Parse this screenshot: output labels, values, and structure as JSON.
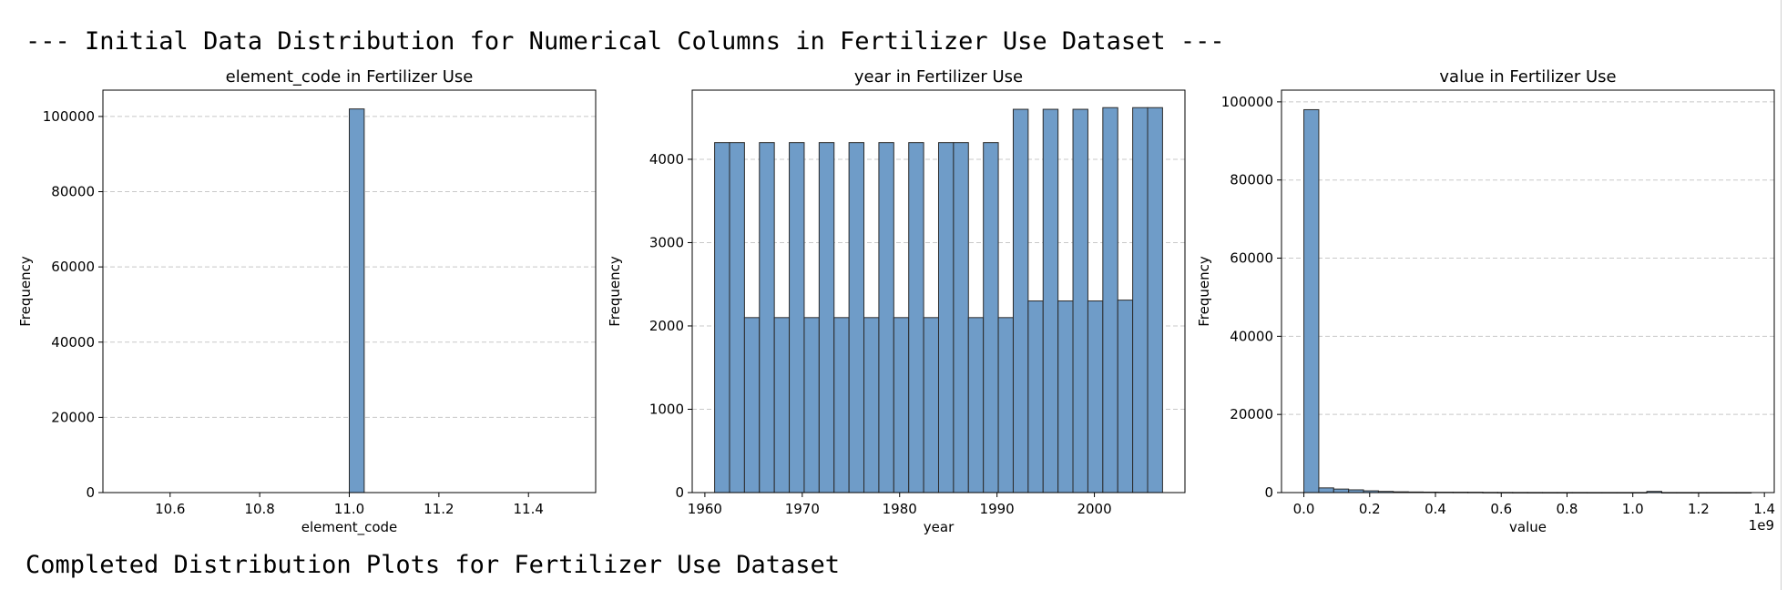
{
  "header_text": "--- Initial Data Distribution for Numerical Columns in Fertilizer Use Dataset ---",
  "footer_text": "Completed Distribution Plots for Fertilizer Use Dataset",
  "colors": {
    "bar_fill": "#6f9cc8",
    "bar_edge": "#2b2b2b",
    "grid": "#c8c8c8"
  },
  "chart_data": [
    {
      "type": "bar",
      "title": "element_code in Fertilizer Use",
      "xlabel": "element_code",
      "ylabel": "Frequency",
      "xlim": [
        10.45,
        11.55
      ],
      "ylim": [
        0,
        107000
      ],
      "xticks": [
        10.6,
        10.8,
        11.0,
        11.2,
        11.4
      ],
      "xtick_labels": [
        "10.6",
        "10.8",
        "11.0",
        "11.2",
        "11.4"
      ],
      "yticks": [
        0,
        20000,
        40000,
        60000,
        80000,
        100000
      ],
      "ytick_labels": [
        "0",
        "20000",
        "40000",
        "60000",
        "80000",
        "100000"
      ],
      "grid": "y-dashed",
      "bins": [
        {
          "x0": 11.0,
          "x1": 11.0333,
          "count": 102000
        }
      ]
    },
    {
      "type": "bar",
      "title": "year in Fertilizer Use",
      "xlabel": "year",
      "ylabel": "Frequency",
      "xlim": [
        1958.7,
        2009.3
      ],
      "ylim": [
        0,
        4830
      ],
      "xticks": [
        1960,
        1970,
        1980,
        1990,
        2000
      ],
      "xtick_labels": [
        "1960",
        "1970",
        "1980",
        "1990",
        "2000"
      ],
      "yticks": [
        0,
        1000,
        2000,
        3000,
        4000
      ],
      "ytick_labels": [
        "0",
        "1000",
        "2000",
        "3000",
        "4000"
      ],
      "grid": "y-dashed",
      "bin_start": 1961,
      "bin_width": 1.5333,
      "counts": [
        4200,
        4200,
        2100,
        4200,
        2100,
        4200,
        2100,
        4200,
        2100,
        4200,
        2100,
        4200,
        2100,
        4200,
        2100,
        4200,
        4200,
        2100,
        4200,
        2100,
        4600,
        2300,
        4600,
        2300,
        4600,
        2300,
        4620,
        2310,
        4620,
        4620
      ]
    },
    {
      "type": "bar",
      "title": "value in Fertilizer Use",
      "xlabel": "value",
      "ylabel": "Frequency",
      "offset_label": "1e9",
      "xlim": [
        -0.068,
        1.43
      ],
      "ylim": [
        0,
        103000
      ],
      "xticks": [
        0.0,
        0.2,
        0.4,
        0.6,
        0.8,
        1.0,
        1.2,
        1.4
      ],
      "xtick_labels": [
        "0.0",
        "0.2",
        "0.4",
        "0.6",
        "0.8",
        "1.0",
        "1.2",
        "1.4"
      ],
      "yticks": [
        0,
        20000,
        40000,
        60000,
        80000,
        100000
      ],
      "ytick_labels": [
        "0",
        "20000",
        "40000",
        "60000",
        "80000",
        "100000"
      ],
      "grid": "y-dashed",
      "bin_start": 0.0,
      "bin_width": 0.04533,
      "counts": [
        98000,
        1200,
        900,
        700,
        450,
        300,
        200,
        150,
        120,
        100,
        90,
        80,
        40,
        30,
        20,
        15,
        10,
        10,
        10,
        5,
        5,
        5,
        5,
        300,
        5,
        5,
        5,
        5,
        5,
        5
      ]
    }
  ]
}
